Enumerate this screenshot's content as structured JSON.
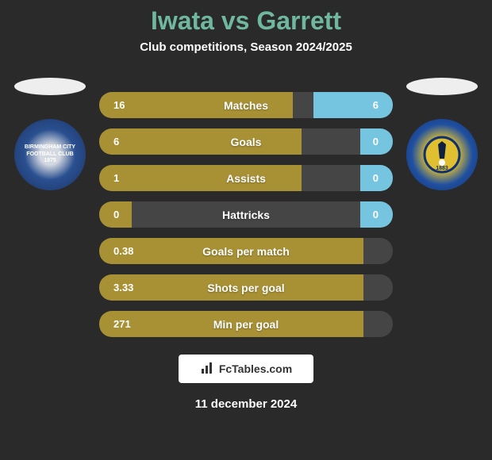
{
  "header": {
    "player1": "Iwata",
    "player2": "Garrett",
    "title_color": "#6fb89f",
    "title_fontsize": 32,
    "subtitle": "Club competitions, Season 2024/2025",
    "subtitle_fontsize": 15
  },
  "colors": {
    "background": "#2a2a2a",
    "stat_left": "#a89135",
    "stat_right": "#76c5e0",
    "stat_empty": "#454545",
    "text": "#ffffff"
  },
  "badges": {
    "left_club": "BIRMINGHAM CITY FOOTBALL CLUB 1875",
    "right_club": "BRISTOL ROVERS F.C. 1883"
  },
  "stats": [
    {
      "label": "Matches",
      "left_val": "16",
      "right_val": "6",
      "left_pct": 66,
      "right_pct": 27
    },
    {
      "label": "Goals",
      "left_val": "6",
      "right_val": "0",
      "left_pct": 69,
      "right_pct": 11
    },
    {
      "label": "Assists",
      "left_val": "1",
      "right_val": "0",
      "left_pct": 69,
      "right_pct": 11
    },
    {
      "label": "Hattricks",
      "left_val": "0",
      "right_val": "0",
      "left_pct": 11,
      "right_pct": 11
    },
    {
      "label": "Goals per match",
      "left_val": "0.38",
      "right_val": "",
      "left_pct": 90,
      "right_pct": 0
    },
    {
      "label": "Shots per goal",
      "left_val": "3.33",
      "right_val": "",
      "left_pct": 90,
      "right_pct": 0
    },
    {
      "label": "Min per goal",
      "left_val": "271",
      "right_val": "",
      "left_pct": 90,
      "right_pct": 0
    }
  ],
  "footer": {
    "logo_text": "FcTables.com",
    "date": "11 december 2024"
  }
}
